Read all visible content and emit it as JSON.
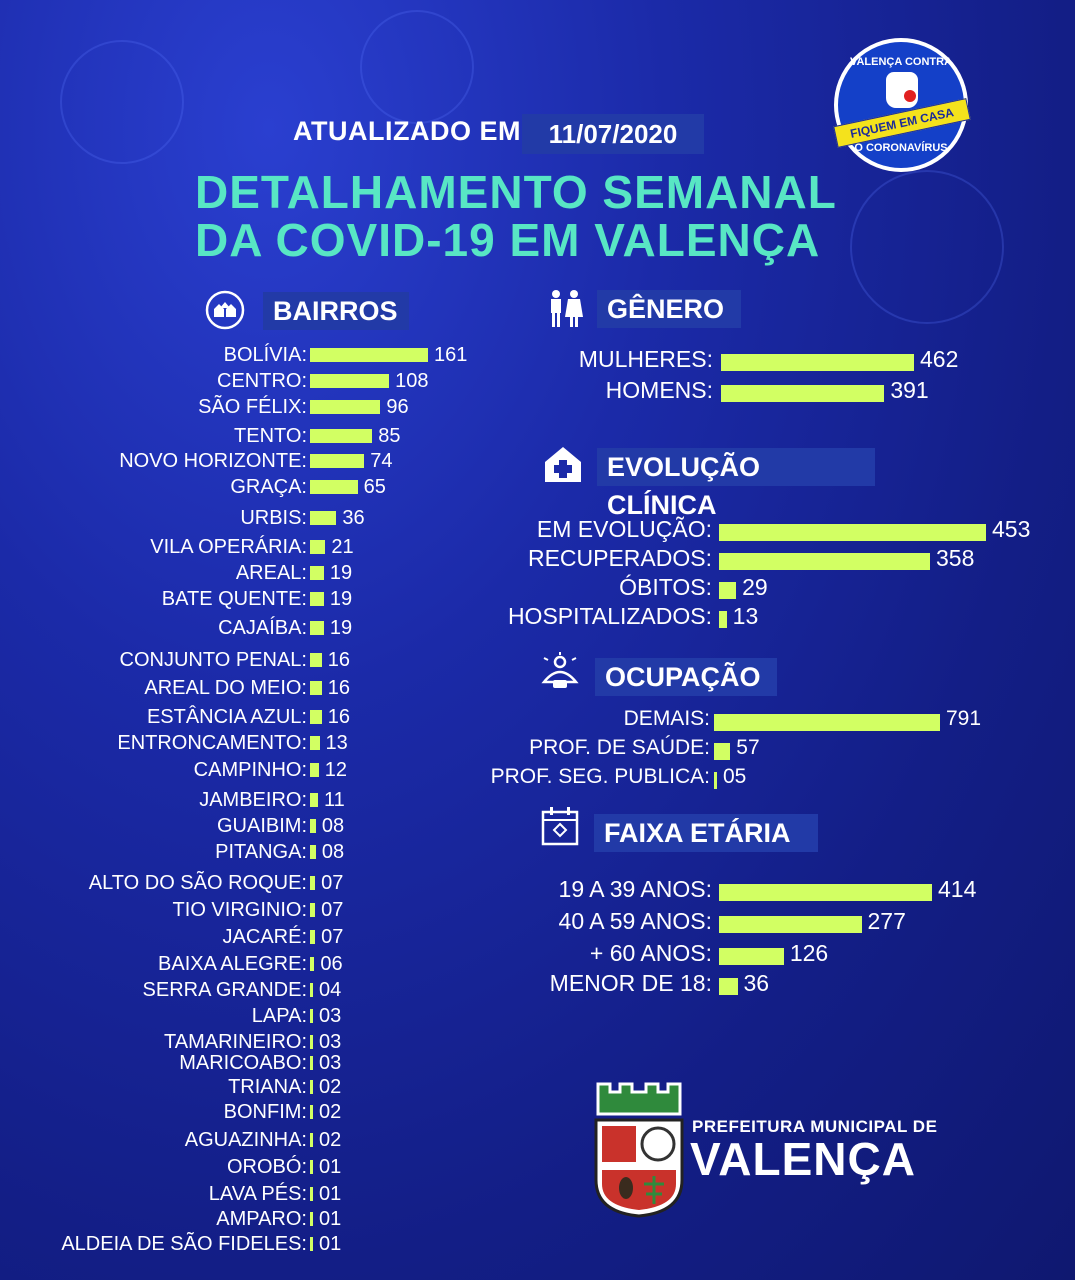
{
  "header": {
    "updated_label": "ATUALIZADO EM",
    "updated_date": "11/07/2020",
    "title_line1": "DETALHAMENTO SEMANAL",
    "title_line2": "DA COVID-19 EM VALENÇA"
  },
  "badge": {
    "top_text": "VALENÇA CONTRA",
    "ribbon_text": "FIQUEM EM CASA",
    "bottom_text": "O CORONAVÍRUS"
  },
  "colors": {
    "bar": "#d2ff63",
    "title": "#58e6c4",
    "label_bg": "#223aa7",
    "background": "#1b2aa8"
  },
  "chart_data": [
    {
      "type": "bar",
      "title": "BAIRROS",
      "icon": "houses-icon",
      "categories": [
        "BOLÍVIA:",
        "CENTRO:",
        "SÃO FÉLIX:",
        "TENTO:",
        "NOVO HORIZONTE:",
        "GRAÇA:",
        "URBIS:",
        "VILA OPERÁRIA:",
        "AREAL:",
        "BATE QUENTE:",
        "CAJAÍBA:",
        "CONJUNTO PENAL:",
        "AREAL DO MEIO:",
        "ESTÂNCIA AZUL:",
        "ENTRONCAMENTO:",
        "CAMPINHO:",
        "JAMBEIRO:",
        "GUAIBIM:",
        "PITANGA:",
        "ALTO DO SÃO ROQUE:",
        "TIO VIRGINIO:",
        "JACARÉ:",
        "BAIXA ALEGRE:",
        "SERRA GRANDE:",
        "LAPA:",
        "TAMARINEIRO:",
        "MARICOABO:",
        "TRIANA:",
        "BONFIM:",
        "AGUAZINHA:",
        "OROBÓ:",
        "LAVA PÉS:",
        "AMPARO:",
        "ALDEIA DE SÃO FIDELES:"
      ],
      "values": [
        161,
        108,
        96,
        85,
        74,
        65,
        36,
        21,
        19,
        19,
        19,
        16,
        16,
        16,
        13,
        12,
        11,
        8,
        8,
        7,
        7,
        7,
        6,
        4,
        3,
        3,
        3,
        2,
        2,
        2,
        1,
        1,
        1,
        1
      ],
      "value_labels": [
        "161",
        "108",
        "96",
        "85",
        "74",
        "65",
        "36",
        "21",
        "19",
        "19",
        "19",
        "16",
        "16",
        "16",
        "13",
        "12",
        "11",
        "08",
        "08",
        "07",
        "07",
        "07",
        "06",
        "04",
        "03",
        "03",
        "03",
        "02",
        "02",
        "02",
        "01",
        "01",
        "01",
        "01"
      ]
    },
    {
      "type": "bar",
      "title": "GÊNERO",
      "icon": "people-icon",
      "categories": [
        "MULHERES:",
        "HOMENS:"
      ],
      "values": [
        462,
        391
      ],
      "value_labels": [
        "462",
        "391"
      ]
    },
    {
      "type": "bar",
      "title": "EVOLUÇÃO CLÍNICA",
      "icon": "hospital-icon",
      "categories": [
        "EM EVOLUÇÃO:",
        "RECUPERADOS:",
        "ÓBITOS:",
        "HOSPITALIZADOS:"
      ],
      "values": [
        453,
        358,
        29,
        13
      ],
      "value_labels": [
        "453",
        "358",
        "29",
        "13"
      ]
    },
    {
      "type": "bar",
      "title": "OCUPAÇÃO",
      "icon": "worker-icon",
      "categories": [
        "DEMAIS:",
        "PROF. DE SAÚDE:",
        "PROF. SEG. PUBLICA:"
      ],
      "values": [
        791,
        57,
        5
      ],
      "value_labels": [
        "791",
        "57",
        "05"
      ]
    },
    {
      "type": "bar",
      "title": "FAIXA ETÁRIA",
      "icon": "calendar-icon",
      "categories": [
        "19 A 39 ANOS:",
        "40 A 59 ANOS:",
        "+ 60 ANOS:",
        "MENOR DE 18:"
      ],
      "values": [
        414,
        277,
        126,
        36
      ],
      "value_labels": [
        "414",
        "277",
        "126",
        "36"
      ]
    }
  ],
  "footer": {
    "org_line": "PREFEITURA MUNICIPAL DE",
    "city": "VALENÇA"
  }
}
